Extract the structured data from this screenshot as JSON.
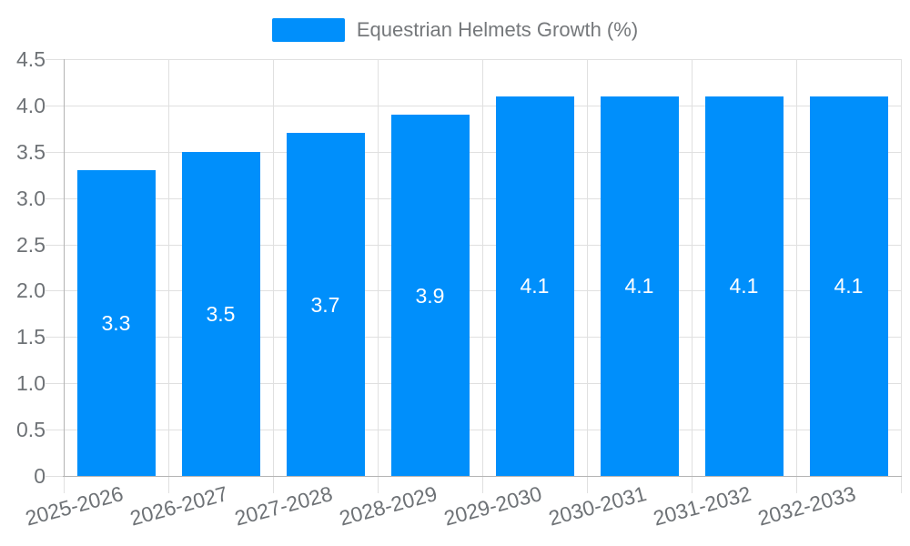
{
  "chart_data": {
    "type": "bar",
    "title": "Equestrian Helmets Growth (%)",
    "categories": [
      "2025-2026",
      "2026-2027",
      "2027-2028",
      "2028-2029",
      "2029-2030",
      "2030-2031",
      "2031-2032",
      "2032-2033"
    ],
    "series": [
      {
        "name": "Equestrian Helmets Growth (%)",
        "values": [
          3.3,
          3.5,
          3.7,
          3.9,
          4.1,
          4.1,
          4.1,
          4.1
        ]
      }
    ],
    "data_labels": [
      "3.3",
      "3.5",
      "3.7",
      "3.9",
      "4.1",
      "4.1",
      "4.1",
      "4.1"
    ],
    "xlabel": "",
    "ylabel": "",
    "ylim": [
      0,
      4.5
    ],
    "y_tick_labels": [
      "0",
      "0.5",
      "1.0",
      "1.5",
      "2.0",
      "2.5",
      "3.0",
      "3.5",
      "4.0",
      "4.5"
    ],
    "grid": true,
    "legend_position": "top",
    "colors": {
      "bar": "#008FFB",
      "grid": "#e0e0e0",
      "axis_line": "#b3b3b3",
      "axis_label_text": "#6e7276",
      "legend_text": "#75787b",
      "data_label_text": "#ffffff",
      "background": "#ffffff"
    }
  }
}
